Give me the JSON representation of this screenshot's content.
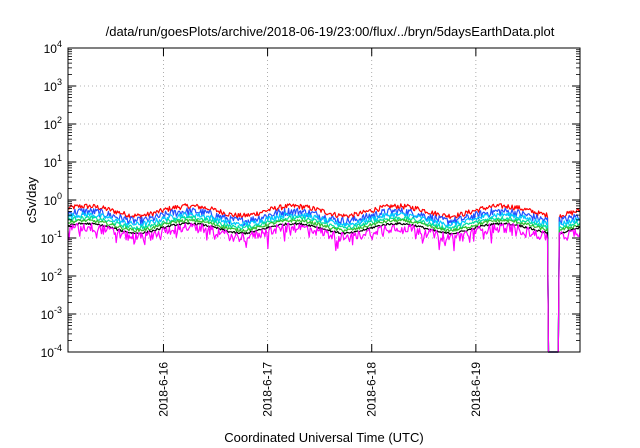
{
  "chart_data": {
    "type": "line",
    "title": "/data/run/goesPlots/archive/2018-06-19/23:00/flux/../bryn/5daysEarthData.plot",
    "xlabel": "Coordinated Universal Time (UTC)",
    "ylabel": "cSv/day",
    "y_scale": "log",
    "ylim": [
      0.0001,
      10000
    ],
    "y_ticks": [
      {
        "value": 10000,
        "base": "10",
        "exp": "4"
      },
      {
        "value": 1000,
        "base": "10",
        "exp": "3"
      },
      {
        "value": 100,
        "base": "10",
        "exp": "2"
      },
      {
        "value": 10,
        "base": "10",
        "exp": "1"
      },
      {
        "value": 1,
        "base": "10",
        "exp": "0"
      },
      {
        "value": 0.1,
        "base": "10",
        "exp": "-1"
      },
      {
        "value": 0.01,
        "base": "10",
        "exp": "-2"
      },
      {
        "value": 0.001,
        "base": "10",
        "exp": "-3"
      },
      {
        "value": 0.0001,
        "base": "10",
        "exp": "-4"
      }
    ],
    "xlim": [
      "2018-06-15 02:00",
      "2018-06-20 00:00"
    ],
    "x_ticks": [
      "2018-6-16",
      "2018-6-17",
      "2018-6-18",
      "2018-6-19"
    ],
    "grid": true,
    "legend": "none",
    "series": [
      {
        "color": "#ff0000",
        "level": 0.7,
        "amp": 0.2
      },
      {
        "color": "#2050ff",
        "level": 0.52,
        "amp": 0.3
      },
      {
        "color": "#00c8ff",
        "level": 0.42,
        "amp": 0.2
      },
      {
        "color": "#00e0a0",
        "level": 0.34,
        "amp": 0.15
      },
      {
        "color": "#30c030",
        "level": 0.29,
        "amp": 0.12
      },
      {
        "color": "#000000",
        "level": 0.24,
        "amp": 0.08
      },
      {
        "color": "#ff00ff",
        "level": 0.2,
        "amp": 0.35
      }
    ]
  }
}
